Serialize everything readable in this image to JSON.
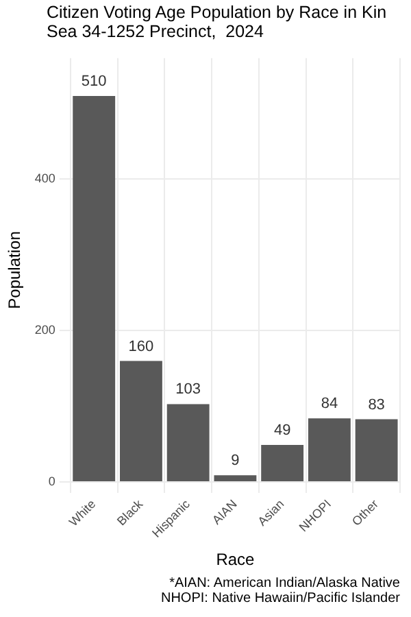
{
  "chart_data": {
    "type": "bar",
    "title": "Citizen Voting Age Population by Race in Kin\nSea 34-1252 Precinct,  2024",
    "xlabel": "Race",
    "ylabel": "Population",
    "categories": [
      "White",
      "Black",
      "Hispanic",
      "AIAN",
      "Asian",
      "NHOPI",
      "Other"
    ],
    "values": [
      510,
      160,
      103,
      9,
      49,
      84,
      83
    ],
    "color": "#595959",
    "ylim": [
      0,
      560
    ],
    "yticks": [
      0,
      200,
      400
    ],
    "grid": true,
    "data_labels": true,
    "annotations": [
      "*AIAN: American Indian/Alaska Native",
      "NHOPI: Native Hawaiin/Pacific Islander"
    ]
  }
}
